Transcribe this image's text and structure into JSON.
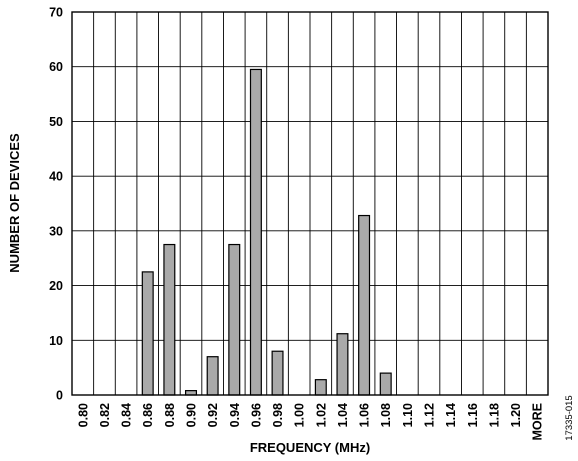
{
  "chart_data": {
    "type": "bar",
    "xlabel": "FREQUENCY (MHz)",
    "ylabel": "NUMBER OF DEVICES",
    "ylim": [
      0,
      70
    ],
    "yticks": [
      "0",
      "10",
      "20",
      "30",
      "40",
      "50",
      "60",
      "70"
    ],
    "categories": [
      "0.80",
      "0.82",
      "0.84",
      "0.86",
      "0.88",
      "0.90",
      "0.92",
      "0.94",
      "0.96",
      "0.98",
      "1.00",
      "1.02",
      "1.04",
      "1.06",
      "1.08",
      "1.10",
      "1.12",
      "1.14",
      "1.16",
      "1.18",
      "1.20",
      "MORE"
    ],
    "values": [
      0,
      0,
      0,
      22.5,
      27.5,
      0.8,
      7,
      27.5,
      59.5,
      8,
      0,
      2.8,
      11.2,
      32.8,
      4,
      0,
      0,
      0,
      0,
      0,
      0,
      0
    ],
    "grid": true,
    "bar_color": "#a9a9a9",
    "figure_id": "17335-015"
  }
}
